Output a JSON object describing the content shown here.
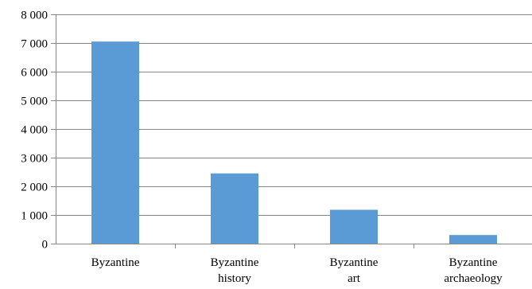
{
  "chart_data": {
    "type": "bar",
    "title": "",
    "xlabel": "",
    "ylabel": "",
    "categories": [
      [
        "Byzantine"
      ],
      [
        "Byzantine",
        "history"
      ],
      [
        "Byzantine",
        "art"
      ],
      [
        "Byzantine",
        "archaeology"
      ]
    ],
    "values": [
      7050,
      2450,
      1180,
      300
    ],
    "ylim": [
      0,
      8000
    ],
    "yticks": [
      0,
      1000,
      2000,
      3000,
      4000,
      5000,
      6000,
      7000,
      8000
    ],
    "ytick_labels": [
      "0",
      "1 000",
      "2 000",
      "3 000",
      "4 000",
      "5 000",
      "6 000",
      "7 000",
      "8 000"
    ],
    "grid": true,
    "legend": "none",
    "colors": {
      "bar": "#5b9bd5",
      "grid": "#868686",
      "axis": "#868686"
    }
  }
}
